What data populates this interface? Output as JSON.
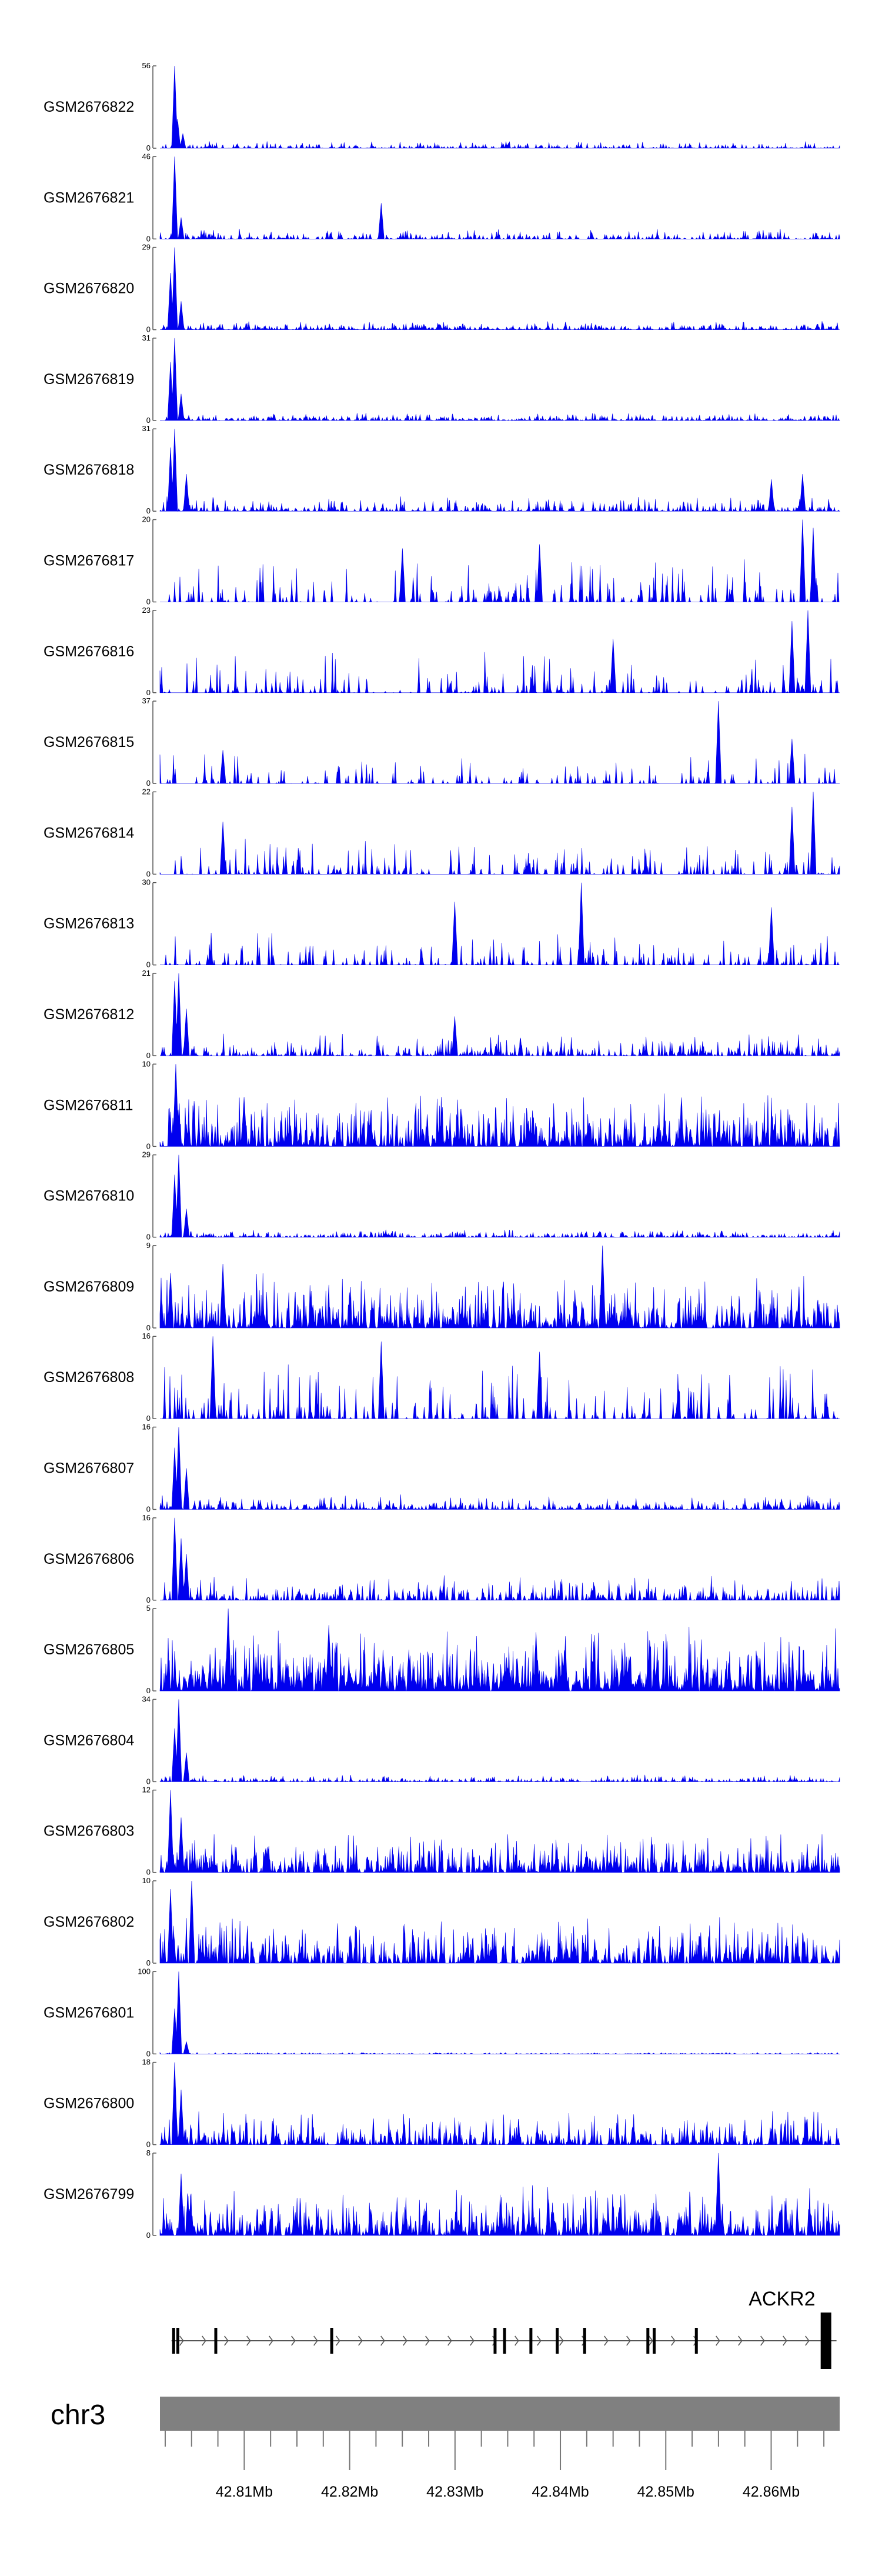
{
  "chart_data": {
    "type": "area",
    "genome": {
      "chromosome": "chr3",
      "gene": "ACKR2",
      "xlim": [
        42.802,
        42.8665
      ],
      "ticks": [
        42.81,
        42.82,
        42.83,
        42.84,
        42.85,
        42.86
      ],
      "tick_labels": [
        "42.81Mb",
        "42.82Mb",
        "42.83Mb",
        "42.84Mb",
        "42.85Mb",
        "42.86Mb"
      ],
      "gene_start": 42.8031,
      "gene_end": 42.8662,
      "exons": [
        42.8033,
        42.8037,
        42.8073,
        42.8183,
        42.8338,
        42.8347,
        42.8372,
        42.8397,
        42.8423,
        42.8483,
        42.8489,
        42.8529,
        42.8652
      ]
    },
    "tracks": [
      {
        "name": "GSM2676822",
        "ymax": 56,
        "color": "#0000ee",
        "peaks": [
          [
            42.8034,
            56
          ],
          [
            42.8037,
            20
          ],
          [
            42.8042,
            10
          ]
        ],
        "noise": 5,
        "density": 0.35
      },
      {
        "name": "GSM2676821",
        "ymax": 46,
        "color": "#0000ee",
        "peaks": [
          [
            42.8034,
            46
          ],
          [
            42.804,
            12
          ],
          [
            42.823,
            20
          ]
        ],
        "noise": 6,
        "density": 0.35
      },
      {
        "name": "GSM2676820",
        "ymax": 29,
        "color": "#0000ee",
        "peaks": [
          [
            42.8034,
            29
          ],
          [
            42.803,
            20
          ],
          [
            42.804,
            10
          ]
        ],
        "noise": 3,
        "density": 0.45
      },
      {
        "name": "GSM2676819",
        "ymax": 31,
        "color": "#0000ee",
        "peaks": [
          [
            42.8034,
            31
          ],
          [
            42.803,
            22
          ],
          [
            42.804,
            10
          ]
        ],
        "noise": 3,
        "density": 0.45
      },
      {
        "name": "GSM2676818",
        "ymax": 31,
        "color": "#0000ee",
        "peaks": [
          [
            42.8034,
            31
          ],
          [
            42.803,
            24
          ],
          [
            42.8045,
            14
          ],
          [
            42.86,
            12
          ],
          [
            42.863,
            14
          ]
        ],
        "noise": 6,
        "density": 0.3
      },
      {
        "name": "GSM2676817",
        "ymax": 20,
        "color": "#0000ee",
        "peaks": [
          [
            42.863,
            20
          ],
          [
            42.864,
            18
          ],
          [
            42.838,
            14
          ],
          [
            42.825,
            13
          ]
        ],
        "noise": 12,
        "density": 0.18
      },
      {
        "name": "GSM2676816",
        "ymax": 23,
        "color": "#0000ee",
        "peaks": [
          [
            42.8635,
            23
          ],
          [
            42.862,
            20
          ],
          [
            42.845,
            15
          ]
        ],
        "noise": 12,
        "density": 0.18
      },
      {
        "name": "GSM2676815",
        "ymax": 37,
        "color": "#0000ee",
        "peaks": [
          [
            42.855,
            37
          ],
          [
            42.862,
            20
          ],
          [
            42.808,
            15
          ]
        ],
        "noise": 14,
        "density": 0.14
      },
      {
        "name": "GSM2676814",
        "ymax": 22,
        "color": "#0000ee",
        "peaks": [
          [
            42.864,
            22
          ],
          [
            42.862,
            18
          ],
          [
            42.808,
            14
          ]
        ],
        "noise": 11,
        "density": 0.2
      },
      {
        "name": "GSM2676813",
        "ymax": 30,
        "color": "#0000ee",
        "peaks": [
          [
            42.842,
            30
          ],
          [
            42.83,
            23
          ],
          [
            42.86,
            21
          ]
        ],
        "noise": 13,
        "density": 0.18
      },
      {
        "name": "GSM2676812",
        "ymax": 21,
        "color": "#0000ee",
        "peaks": [
          [
            42.8038,
            21
          ],
          [
            42.8034,
            19
          ],
          [
            42.8045,
            12
          ],
          [
            42.83,
            10
          ]
        ],
        "noise": 6,
        "density": 0.3
      },
      {
        "name": "GSM2676811",
        "ymax": 10,
        "color": "#0000ee",
        "peaks": [
          [
            42.8035,
            10
          ],
          [
            42.81,
            6
          ]
        ],
        "noise": 7,
        "density": 0.55
      },
      {
        "name": "GSM2676810",
        "ymax": 29,
        "color": "#0000ee",
        "peaks": [
          [
            42.8038,
            29
          ],
          [
            42.8034,
            22
          ],
          [
            42.8045,
            10
          ]
        ],
        "noise": 3,
        "density": 0.4
      },
      {
        "name": "GSM2676809",
        "ymax": 9,
        "color": "#0000ee",
        "peaks": [
          [
            42.844,
            9
          ],
          [
            42.808,
            7
          ],
          [
            42.803,
            6
          ]
        ],
        "noise": 6,
        "density": 0.55
      },
      {
        "name": "GSM2676808",
        "ymax": 16,
        "color": "#0000ee",
        "peaks": [
          [
            42.807,
            16
          ],
          [
            42.823,
            15
          ],
          [
            42.838,
            13
          ]
        ],
        "noise": 11,
        "density": 0.2
      },
      {
        "name": "GSM2676807",
        "ymax": 16,
        "color": "#0000ee",
        "peaks": [
          [
            42.8038,
            16
          ],
          [
            42.8034,
            12
          ],
          [
            42.8045,
            8
          ]
        ],
        "noise": 3,
        "density": 0.4
      },
      {
        "name": "GSM2676806",
        "ymax": 16,
        "color": "#0000ee",
        "peaks": [
          [
            42.8034,
            16
          ],
          [
            42.804,
            12
          ],
          [
            42.8045,
            9
          ]
        ],
        "noise": 5,
        "density": 0.4
      },
      {
        "name": "GSM2676805",
        "ymax": 5,
        "color": "#0000ee",
        "peaks": [
          [
            42.8085,
            5
          ],
          [
            42.818,
            4
          ]
        ],
        "noise": 4,
        "density": 0.7
      },
      {
        "name": "GSM2676804",
        "ymax": 34,
        "color": "#0000ee",
        "peaks": [
          [
            42.8038,
            34
          ],
          [
            42.8034,
            22
          ],
          [
            42.8045,
            12
          ]
        ],
        "noise": 3,
        "density": 0.4
      },
      {
        "name": "GSM2676803",
        "ymax": 12,
        "color": "#0000ee",
        "peaks": [
          [
            42.803,
            12
          ],
          [
            42.804,
            8
          ]
        ],
        "noise": 6,
        "density": 0.5
      },
      {
        "name": "GSM2676802",
        "ymax": 10,
        "color": "#0000ee",
        "peaks": [
          [
            42.805,
            10
          ],
          [
            42.803,
            9
          ]
        ],
        "noise": 6,
        "density": 0.5
      },
      {
        "name": "GSM2676801",
        "ymax": 100,
        "color": "#0000ee",
        "peaks": [
          [
            42.8038,
            100
          ],
          [
            42.8034,
            55
          ],
          [
            42.8045,
            15
          ]
        ],
        "noise": 2,
        "density": 0.35
      },
      {
        "name": "GSM2676800",
        "ymax": 18,
        "color": "#0000ee",
        "peaks": [
          [
            42.8034,
            18
          ],
          [
            42.804,
            12
          ]
        ],
        "noise": 8,
        "density": 0.45
      },
      {
        "name": "GSM2676799",
        "ymax": 8,
        "color": "#0000ee",
        "peaks": [
          [
            42.855,
            8
          ],
          [
            42.804,
            6
          ]
        ],
        "noise": 5,
        "density": 0.55
      }
    ]
  }
}
